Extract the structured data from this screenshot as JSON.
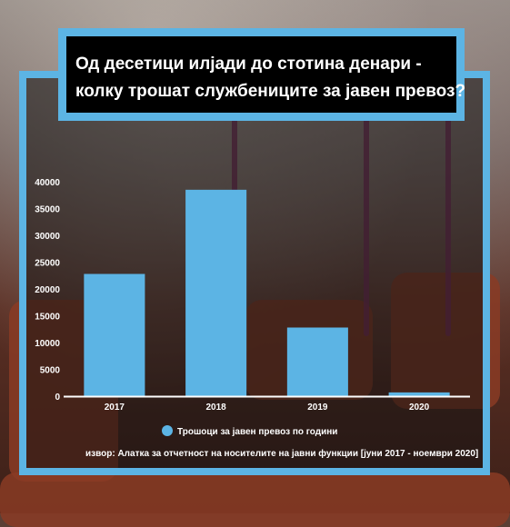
{
  "title_lines": [
    "Од десетици илјади до стотина денари -",
    "колку трошат службениците за јавен превоз?"
  ],
  "source": "извор: Алатка за отчетност на носителите на јавни функции [јуни 2017 - ноември 2020]",
  "colors": {
    "accent": "#5cb4e4",
    "bar": "#5cb4e4",
    "text": "#ffffff"
  },
  "chart_data": {
    "type": "bar",
    "categories": [
      "2017",
      "2018",
      "2019",
      "2020"
    ],
    "series": [
      {
        "name": "Трошоци за јавен превоз по години",
        "values": [
          22800,
          38500,
          12800,
          700
        ]
      }
    ],
    "y_ticks": [
      0,
      5000,
      10000,
      15000,
      20000,
      25000,
      30000,
      35000,
      40000
    ],
    "ylim": [
      0,
      40000
    ],
    "grid": false,
    "legend_position": "bottom"
  }
}
